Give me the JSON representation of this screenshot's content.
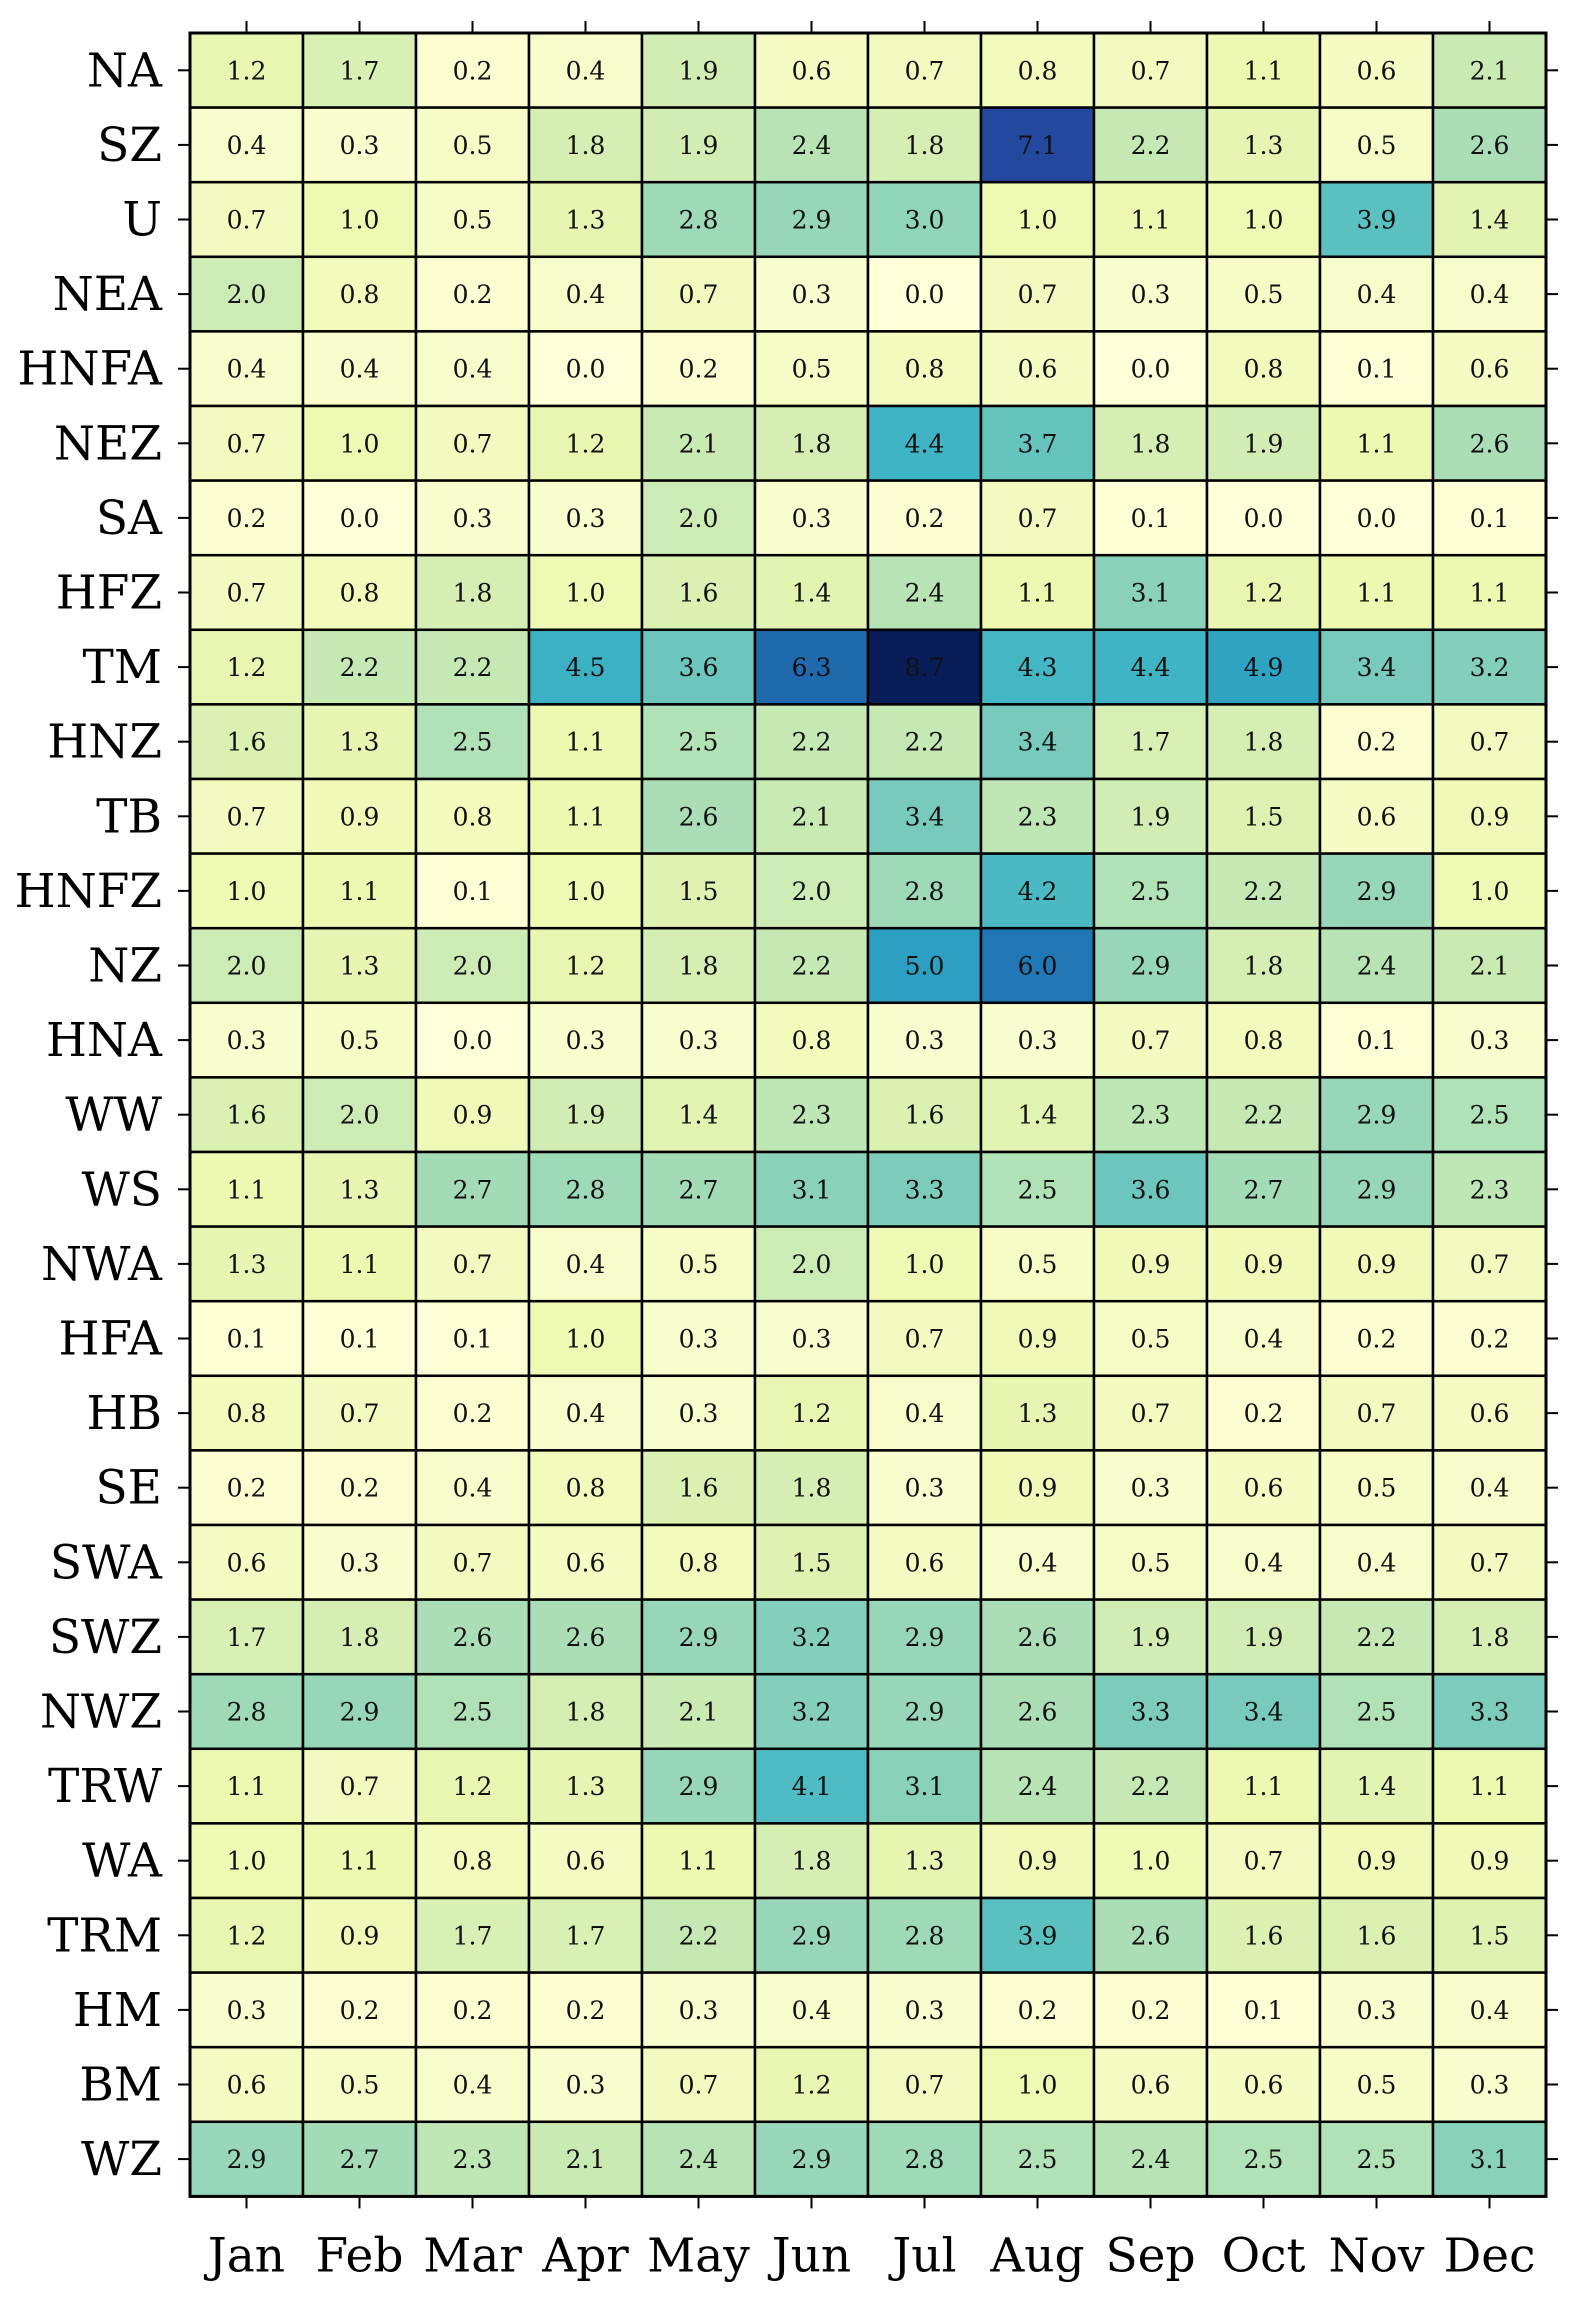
{
  "chart_data": {
    "type": "heatmap",
    "colormap": "YlGnBu",
    "vmin": 0,
    "vmax": 8.7,
    "columns": [
      "Jan",
      "Feb",
      "Mar",
      "Apr",
      "May",
      "Jun",
      "Jul",
      "Aug",
      "Sep",
      "Oct",
      "Nov",
      "Dec"
    ],
    "rows": [
      "NA",
      "SZ",
      "U",
      "NEA",
      "HNFA",
      "NEZ",
      "SA",
      "HFZ",
      "TM",
      "HNZ",
      "TB",
      "HNFZ",
      "NZ",
      "HNA",
      "WW",
      "WS",
      "NWA",
      "HFA",
      "HB",
      "SE",
      "SWA",
      "SWZ",
      "NWZ",
      "TRW",
      "WA",
      "TRM",
      "HM",
      "BM",
      "WZ"
    ],
    "values": [
      [
        1.2,
        1.7,
        0.2,
        0.4,
        1.9,
        0.6,
        0.7,
        0.8,
        0.7,
        1.1,
        0.6,
        2.1
      ],
      [
        0.4,
        0.3,
        0.5,
        1.8,
        1.9,
        2.4,
        1.8,
        7.1,
        2.2,
        1.3,
        0.5,
        2.6
      ],
      [
        0.7,
        1.0,
        0.5,
        1.3,
        2.8,
        2.9,
        3.0,
        1.0,
        1.1,
        1.0,
        3.9,
        1.4
      ],
      [
        2.0,
        0.8,
        0.2,
        0.4,
        0.7,
        0.3,
        0.0,
        0.7,
        0.3,
        0.5,
        0.4,
        0.4
      ],
      [
        0.4,
        0.4,
        0.4,
        0.0,
        0.2,
        0.5,
        0.8,
        0.6,
        0.0,
        0.8,
        0.1,
        0.6
      ],
      [
        0.7,
        1.0,
        0.7,
        1.2,
        2.1,
        1.8,
        4.4,
        3.7,
        1.8,
        1.9,
        1.1,
        2.6
      ],
      [
        0.2,
        0.0,
        0.3,
        0.3,
        2.0,
        0.3,
        0.2,
        0.7,
        0.1,
        0.0,
        0.0,
        0.1
      ],
      [
        0.7,
        0.8,
        1.8,
        1.0,
        1.6,
        1.4,
        2.4,
        1.1,
        3.1,
        1.2,
        1.1,
        1.1
      ],
      [
        1.2,
        2.2,
        2.2,
        4.5,
        3.6,
        6.3,
        8.7,
        4.3,
        4.4,
        4.9,
        3.4,
        3.2
      ],
      [
        1.6,
        1.3,
        2.5,
        1.1,
        2.5,
        2.2,
        2.2,
        3.4,
        1.7,
        1.8,
        0.2,
        0.7
      ],
      [
        0.7,
        0.9,
        0.8,
        1.1,
        2.6,
        2.1,
        3.4,
        2.3,
        1.9,
        1.5,
        0.6,
        0.9
      ],
      [
        1.0,
        1.1,
        0.1,
        1.0,
        1.5,
        2.0,
        2.8,
        4.2,
        2.5,
        2.2,
        2.9,
        1.0
      ],
      [
        2.0,
        1.3,
        2.0,
        1.2,
        1.8,
        2.2,
        5.0,
        6.0,
        2.9,
        1.8,
        2.4,
        2.1
      ],
      [
        0.3,
        0.5,
        0.0,
        0.3,
        0.3,
        0.8,
        0.3,
        0.3,
        0.7,
        0.8,
        0.1,
        0.3
      ],
      [
        1.6,
        2.0,
        0.9,
        1.9,
        1.4,
        2.3,
        1.6,
        1.4,
        2.3,
        2.2,
        2.9,
        2.5
      ],
      [
        1.1,
        1.3,
        2.7,
        2.8,
        2.7,
        3.1,
        3.3,
        2.5,
        3.6,
        2.7,
        2.9,
        2.3
      ],
      [
        1.3,
        1.1,
        0.7,
        0.4,
        0.5,
        2.0,
        1.0,
        0.5,
        0.9,
        0.9,
        0.9,
        0.7
      ],
      [
        0.1,
        0.1,
        0.1,
        1.0,
        0.3,
        0.3,
        0.7,
        0.9,
        0.5,
        0.4,
        0.2,
        0.2
      ],
      [
        0.8,
        0.7,
        0.2,
        0.4,
        0.3,
        1.2,
        0.4,
        1.3,
        0.7,
        0.2,
        0.7,
        0.6
      ],
      [
        0.2,
        0.2,
        0.4,
        0.8,
        1.6,
        1.8,
        0.3,
        0.9,
        0.3,
        0.6,
        0.5,
        0.4
      ],
      [
        0.6,
        0.3,
        0.7,
        0.6,
        0.8,
        1.5,
        0.6,
        0.4,
        0.5,
        0.4,
        0.4,
        0.7
      ],
      [
        1.7,
        1.8,
        2.6,
        2.6,
        2.9,
        3.2,
        2.9,
        2.6,
        1.9,
        1.9,
        2.2,
        1.8
      ],
      [
        2.8,
        2.9,
        2.5,
        1.8,
        2.1,
        3.2,
        2.9,
        2.6,
        3.3,
        3.4,
        2.5,
        3.3
      ],
      [
        1.1,
        0.7,
        1.2,
        1.3,
        2.9,
        4.1,
        3.1,
        2.4,
        2.2,
        1.1,
        1.4,
        1.1
      ],
      [
        1.0,
        1.1,
        0.8,
        0.6,
        1.1,
        1.8,
        1.3,
        0.9,
        1.0,
        0.7,
        0.9,
        0.9
      ],
      [
        1.2,
        0.9,
        1.7,
        1.7,
        2.2,
        2.9,
        2.8,
        3.9,
        2.6,
        1.6,
        1.6,
        1.5
      ],
      [
        0.3,
        0.2,
        0.2,
        0.2,
        0.3,
        0.4,
        0.3,
        0.2,
        0.2,
        0.1,
        0.3,
        0.4
      ],
      [
        0.6,
        0.5,
        0.4,
        0.3,
        0.7,
        1.2,
        0.7,
        1.0,
        0.6,
        0.6,
        0.5,
        0.3
      ],
      [
        2.9,
        2.7,
        2.3,
        2.1,
        2.4,
        2.9,
        2.8,
        2.5,
        2.4,
        2.5,
        2.5,
        3.1
      ]
    ]
  }
}
